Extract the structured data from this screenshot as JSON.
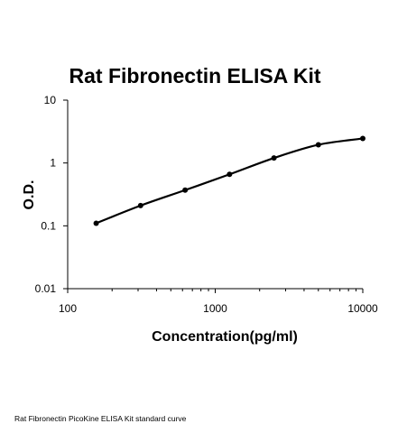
{
  "chart_data": {
    "type": "line",
    "title": "Rat Fibronectin ELISA Kit",
    "xlabel": "Concentration(pg/ml)",
    "ylabel": "O.D.",
    "x_scale": "log",
    "y_scale": "log",
    "xlim": [
      100,
      10000
    ],
    "ylim": [
      0.01,
      10
    ],
    "x_ticks": [
      100,
      1000,
      10000
    ],
    "x_tick_labels": [
      "100",
      "1000",
      "10000"
    ],
    "y_ticks": [
      0.01,
      0.1,
      1,
      10
    ],
    "y_tick_labels": [
      "0.01",
      "0.1",
      "1",
      "10"
    ],
    "grid": false,
    "series": [
      {
        "x": [
          156,
          312,
          625,
          1250,
          2500,
          5000,
          10000
        ],
        "y": [
          0.11,
          0.21,
          0.37,
          0.66,
          1.2,
          1.95,
          2.45
        ]
      }
    ],
    "colors": {
      "line": "#000000",
      "axis": "#000000"
    }
  },
  "caption": "Rat Fibronectin PicoKine ELISA Kit standard curve"
}
